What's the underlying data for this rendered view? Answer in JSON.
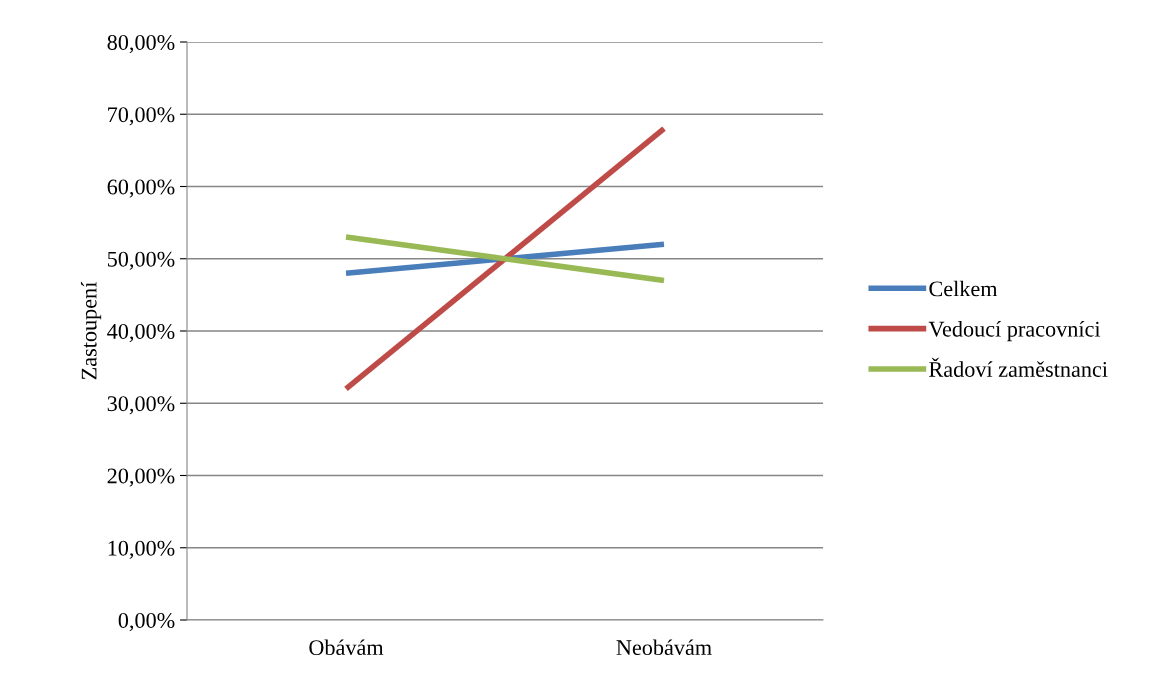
{
  "chart_data": {
    "type": "line",
    "ylabel": "Zastoupení",
    "categories": [
      "Obávám",
      "Neobávám"
    ],
    "series": [
      {
        "name": "Celkem",
        "color": "#4a7ebb",
        "values": [
          48,
          52
        ]
      },
      {
        "name": "Vedoucí pracovníci",
        "color": "#be4b48",
        "values": [
          32,
          68
        ]
      },
      {
        "name": "Řadoví zaměstnanci",
        "color": "#98b954",
        "values": [
          53,
          47
        ]
      }
    ],
    "ylim": [
      0,
      80
    ],
    "yticks": [
      {
        "value": 0,
        "label": "0,00%"
      },
      {
        "value": 10,
        "label": "10,00%"
      },
      {
        "value": 20,
        "label": "20,00%"
      },
      {
        "value": 30,
        "label": "30,00%"
      },
      {
        "value": 40,
        "label": "40,00%"
      },
      {
        "value": 50,
        "label": "50,00%"
      },
      {
        "value": 60,
        "label": "60,00%"
      },
      {
        "value": 70,
        "label": "70,00%"
      },
      {
        "value": 80,
        "label": "80,00%"
      }
    ],
    "grid": "y",
    "legend": "right",
    "marker": "none",
    "line_style": "solid"
  }
}
